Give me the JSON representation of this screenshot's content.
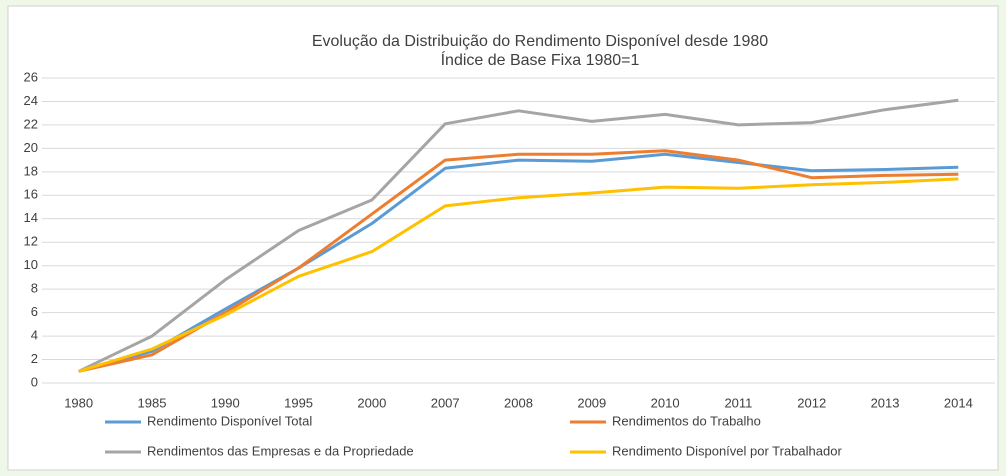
{
  "chart_data": {
    "type": "line",
    "title": "Evolução da Distribuição do Rendimento Disponível desde 1980",
    "subtitle": "Índice de Base Fixa 1980=1",
    "categories": [
      "1980",
      "1985",
      "1990",
      "1995",
      "2000",
      "2007",
      "2008",
      "2009",
      "2010",
      "2011",
      "2012",
      "2013",
      "2014"
    ],
    "series": [
      {
        "name": "Rendimento Disponível Total",
        "color": "#5b9bd5",
        "values": [
          1,
          2.7,
          6.3,
          9.8,
          13.6,
          18.3,
          19.0,
          18.9,
          19.5,
          18.8,
          18.1,
          18.2,
          18.4
        ]
      },
      {
        "name": "Rendimentos do Trabalho",
        "color": "#ed7d31",
        "values": [
          1,
          2.4,
          6.0,
          9.8,
          14.4,
          19.0,
          19.5,
          19.5,
          19.8,
          19.0,
          17.5,
          17.7,
          17.8
        ]
      },
      {
        "name": "Rendimentos das Empresas e da Propriedade",
        "color": "#a5a5a5",
        "values": [
          1,
          4.0,
          8.8,
          13.0,
          15.6,
          22.1,
          23.2,
          22.3,
          22.9,
          22.0,
          22.2,
          23.3,
          24.1
        ]
      },
      {
        "name": "Rendimento Disponível por Trabalhador",
        "color": "#ffc000",
        "values": [
          1,
          2.9,
          5.8,
          9.1,
          11.2,
          15.1,
          15.8,
          16.2,
          16.7,
          16.6,
          16.9,
          17.1,
          17.4
        ]
      }
    ],
    "ylim": [
      0,
      26
    ],
    "yticks": [
      0,
      2,
      4,
      6,
      8,
      10,
      12,
      14,
      16,
      18,
      20,
      22,
      24,
      26
    ],
    "grid": true
  }
}
